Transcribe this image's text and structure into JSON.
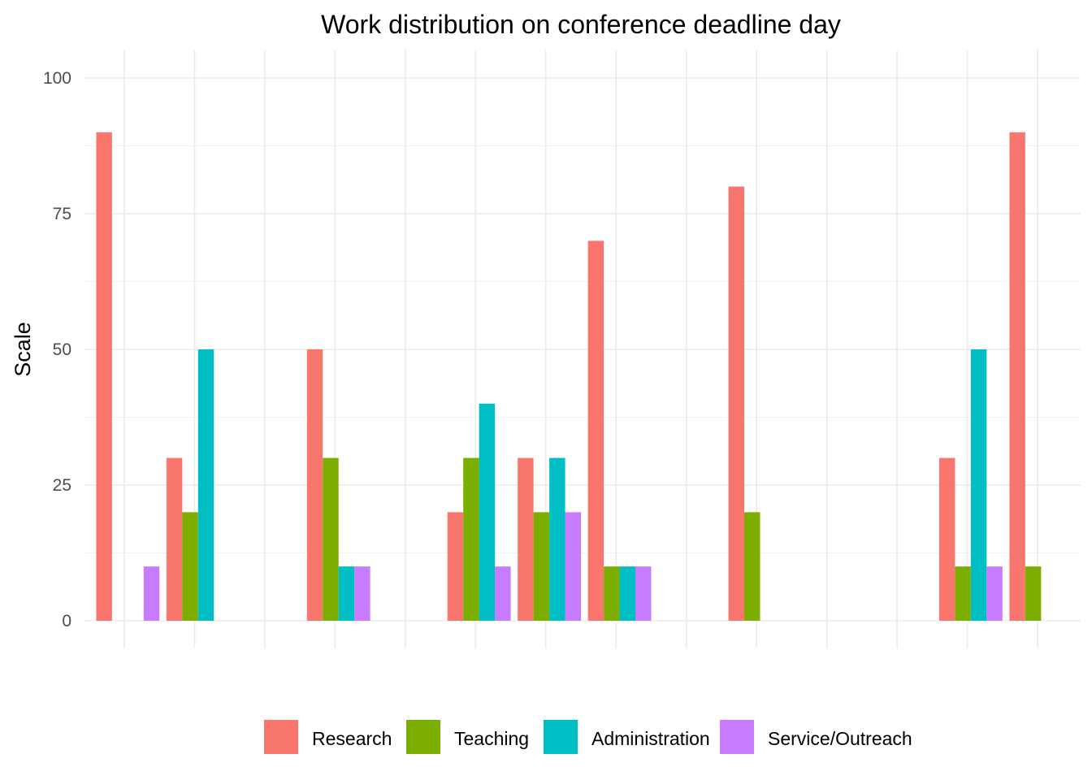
{
  "chart_data": {
    "type": "bar",
    "title": "Work distribution on conference deadline day",
    "xlabel": "",
    "ylabel": "Scale",
    "ylim": [
      0,
      105
    ],
    "yticks": [
      0,
      25,
      50,
      75,
      100
    ],
    "grid": true,
    "legend_position": "bottom",
    "series": [
      {
        "name": "Research",
        "color": "#F8766D",
        "values": [
          90,
          30,
          0,
          50,
          0,
          20,
          30,
          70,
          0,
          80,
          0,
          0,
          30,
          90
        ]
      },
      {
        "name": "Teaching",
        "color": "#7CAE00",
        "values": [
          0,
          20,
          0,
          30,
          0,
          30,
          20,
          10,
          0,
          20,
          0,
          0,
          10,
          10
        ]
      },
      {
        "name": "Administration",
        "color": "#00BFC4",
        "values": [
          0,
          50,
          0,
          10,
          0,
          40,
          30,
          10,
          0,
          0,
          0,
          0,
          50,
          0
        ]
      },
      {
        "name": "Service/Outreach",
        "color": "#C77CFF",
        "values": [
          10,
          0,
          0,
          10,
          0,
          10,
          20,
          10,
          0,
          0,
          0,
          0,
          10,
          0
        ]
      }
    ]
  }
}
